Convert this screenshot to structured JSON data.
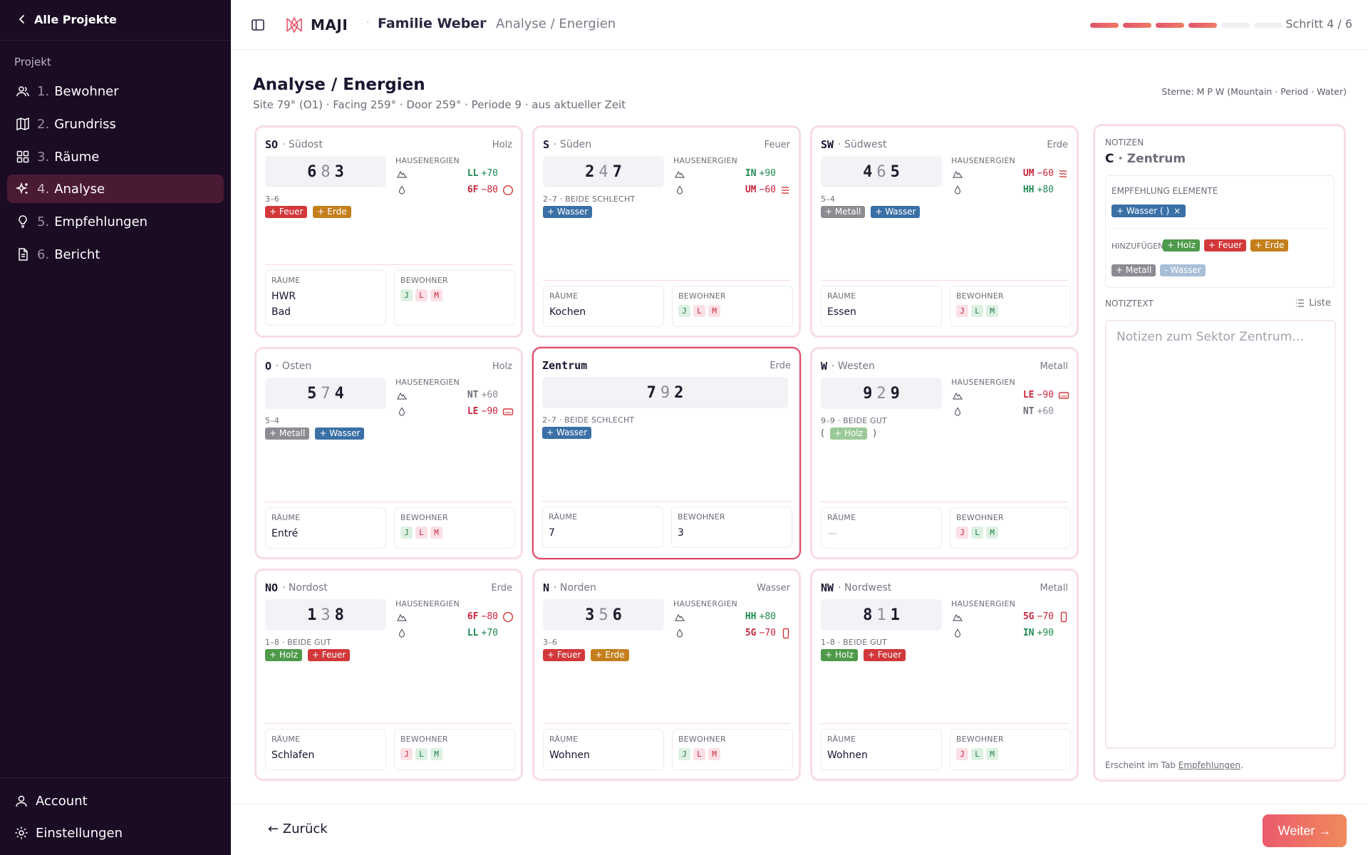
{
  "sidebar": {
    "back_label": "Alle Projekte",
    "section_label": "Projekt",
    "items": [
      {
        "num": "1.",
        "label": "Bewohner",
        "icon": "users-icon"
      },
      {
        "num": "2.",
        "label": "Grundriss",
        "icon": "map-icon"
      },
      {
        "num": "3.",
        "label": "Räume",
        "icon": "grid-icon"
      },
      {
        "num": "4.",
        "label": "Analyse",
        "icon": "sparkles-icon",
        "active": true
      },
      {
        "num": "5.",
        "label": "Empfehlungen",
        "icon": "lightbulb-icon"
      },
      {
        "num": "6.",
        "label": "Bericht",
        "icon": "document-icon"
      }
    ],
    "account_label": "Account",
    "settings_label": "Einstellungen"
  },
  "topbar": {
    "brand": "MAJI",
    "client": "Familie Weber",
    "page": "Analyse / Energien",
    "step": "Schritt 4 / 6",
    "progress_done": 4,
    "progress_total": 6
  },
  "header": {
    "title": "Analyse / Energien",
    "subtitle": "Site 79° (O1) · Facing 259° · Door 259° · Periode 9 · aus aktueller Zeit",
    "stars_legend": "Sterne: M P W (Mountain · Period · Water)"
  },
  "labels": {
    "hausenergien": "HAUSENERGIEN",
    "raeume": "RÄUME",
    "bewohner": "BEWOHNER"
  },
  "cards": [
    {
      "code": "SO",
      "name": "· Südost",
      "element": "Holz",
      "stars": [
        "6",
        "8",
        "3"
      ],
      "meta": "3–6",
      "tags": [
        {
          "label": "+ Feuer",
          "cls": "t-feuer"
        },
        {
          "label": "+ Erde",
          "cls": "t-erde"
        }
      ],
      "energies": [
        {
          "code": "LL",
          "val": "+70",
          "cls": "good",
          "sym": ""
        },
        {
          "code": "6F",
          "val": "−80",
          "cls": "bad",
          "sym": "circle"
        }
      ],
      "rooms": [
        "HWR",
        "Bad"
      ],
      "residents": [
        {
          "l": "J",
          "c": "r-g"
        },
        {
          "l": "L",
          "c": "r-r"
        },
        {
          "l": "M",
          "c": "r-r"
        }
      ]
    },
    {
      "code": "S",
      "name": "· Süden",
      "element": "Feuer",
      "stars": [
        "2",
        "4",
        "7"
      ],
      "meta": "2–7 · BEIDE SCHLECHT",
      "tags": [
        {
          "label": "+ Wasser",
          "cls": "t-wasser"
        }
      ],
      "energies": [
        {
          "code": "IN",
          "val": "+90",
          "cls": "good",
          "sym": ""
        },
        {
          "code": "UM",
          "val": "−60",
          "cls": "bad",
          "sym": "waves"
        }
      ],
      "rooms": [
        "Kochen"
      ],
      "residents": [
        {
          "l": "J",
          "c": "r-g"
        },
        {
          "l": "L",
          "c": "r-r"
        },
        {
          "l": "M",
          "c": "r-r"
        }
      ]
    },
    {
      "code": "SW",
      "name": "· Südwest",
      "element": "Erde",
      "stars": [
        "4",
        "6",
        "5"
      ],
      "meta": "5–4",
      "tags": [
        {
          "label": "+ Metall",
          "cls": "t-metall"
        },
        {
          "label": "+ Wasser",
          "cls": "t-wasser"
        }
      ],
      "energies": [
        {
          "code": "UM",
          "val": "−60",
          "cls": "bad",
          "sym": "waves"
        },
        {
          "code": "HH",
          "val": "+80",
          "cls": "good",
          "sym": ""
        }
      ],
      "rooms": [
        "Essen"
      ],
      "residents": [
        {
          "l": "J",
          "c": "r-r"
        },
        {
          "l": "L",
          "c": "r-g"
        },
        {
          "l": "M",
          "c": "r-g"
        }
      ]
    },
    {
      "code": "O",
      "name": "· Osten",
      "element": "Holz",
      "stars": [
        "5",
        "7",
        "4"
      ],
      "meta": "5–4",
      "tags": [
        {
          "label": "+ Metall",
          "cls": "t-metall"
        },
        {
          "label": "+ Wasser",
          "cls": "t-wasser"
        }
      ],
      "energies": [
        {
          "code": "NT",
          "val": "+60",
          "cls": "soft",
          "sym": ""
        },
        {
          "code": "LE",
          "val": "−90",
          "cls": "bad",
          "sym": "rect"
        }
      ],
      "rooms": [
        "Entré"
      ],
      "residents": [
        {
          "l": "J",
          "c": "r-g"
        },
        {
          "l": "L",
          "c": "r-r"
        },
        {
          "l": "M",
          "c": "r-r"
        }
      ]
    },
    {
      "code": "Zentrum",
      "name": "",
      "element": "Erde",
      "selected": true,
      "stars": [
        "7",
        "9",
        "2"
      ],
      "meta": "2–7 · BEIDE SCHLECHT",
      "tags": [
        {
          "label": "+ Wasser",
          "cls": "t-wasser"
        }
      ],
      "energies": [],
      "rooms": [
        "7"
      ],
      "residents_text": "3",
      "residents": []
    },
    {
      "code": "W",
      "name": "· Westen",
      "element": "Metall",
      "stars": [
        "9",
        "2",
        "9"
      ],
      "meta": "9–9 · BEIDE GUT",
      "tags": [
        {
          "label": "+ Holz",
          "cls": "t-holz-light",
          "paren": true
        }
      ],
      "energies": [
        {
          "code": "LE",
          "val": "−90",
          "cls": "bad",
          "sym": "rect"
        },
        {
          "code": "NT",
          "val": "+60",
          "cls": "soft",
          "sym": ""
        }
      ],
      "rooms": [
        "—"
      ],
      "rooms_muted": true,
      "residents": [
        {
          "l": "J",
          "c": "r-r"
        },
        {
          "l": "L",
          "c": "r-g"
        },
        {
          "l": "M",
          "c": "r-g"
        }
      ]
    },
    {
      "code": "NO",
      "name": "· Nordost",
      "element": "Erde",
      "stars": [
        "1",
        "3",
        "8"
      ],
      "meta": "1–8 · BEIDE GUT",
      "tags": [
        {
          "label": "+ Holz",
          "cls": "t-holz"
        },
        {
          "label": "+ Feuer",
          "cls": "t-feuer"
        }
      ],
      "energies": [
        {
          "code": "6F",
          "val": "−80",
          "cls": "bad",
          "sym": "circle"
        },
        {
          "code": "LL",
          "val": "+70",
          "cls": "good",
          "sym": ""
        }
      ],
      "rooms": [
        "Schlafen"
      ],
      "residents": [
        {
          "l": "J",
          "c": "r-r"
        },
        {
          "l": "L",
          "c": "r-g"
        },
        {
          "l": "M",
          "c": "r-g"
        }
      ]
    },
    {
      "code": "N",
      "name": "· Norden",
      "element": "Wasser",
      "stars": [
        "3",
        "5",
        "6"
      ],
      "meta": "3–6",
      "tags": [
        {
          "label": "+ Feuer",
          "cls": "t-feuer"
        },
        {
          "label": "+ Erde",
          "cls": "t-erde"
        }
      ],
      "energies": [
        {
          "code": "HH",
          "val": "+80",
          "cls": "good",
          "sym": ""
        },
        {
          "code": "5G",
          "val": "−70",
          "cls": "bad",
          "sym": "phone"
        }
      ],
      "rooms": [
        "Wohnen"
      ],
      "residents": [
        {
          "l": "J",
          "c": "r-g"
        },
        {
          "l": "L",
          "c": "r-r"
        },
        {
          "l": "M",
          "c": "r-r"
        }
      ]
    },
    {
      "code": "NW",
      "name": "· Nordwest",
      "element": "Metall",
      "stars": [
        "8",
        "1",
        "1"
      ],
      "meta": "1–8 · BEIDE GUT",
      "tags": [
        {
          "label": "+ Holz",
          "cls": "t-holz"
        },
        {
          "label": "+ Feuer",
          "cls": "t-feuer"
        }
      ],
      "energies": [
        {
          "code": "5G",
          "val": "−70",
          "cls": "bad",
          "sym": "phone"
        },
        {
          "code": "IN",
          "val": "+90",
          "cls": "good",
          "sym": ""
        }
      ],
      "rooms": [
        "Wohnen"
      ],
      "residents": [
        {
          "l": "J",
          "c": "r-r"
        },
        {
          "l": "L",
          "c": "r-g"
        },
        {
          "l": "M",
          "c": "r-g"
        }
      ]
    }
  ],
  "notes": {
    "caption": "NOTIZEN",
    "title_code": "C",
    "title_name": "· Zentrum",
    "emp_label": "EMPFEHLUNG ELEMENTE",
    "emp_chip": "+ Wasser ( )",
    "emp_chip_x": "×",
    "add_label": "HINZUFÜGEN:",
    "add_tags": [
      {
        "label": "+ Holz",
        "cls": "t-holz"
      },
      {
        "label": "+ Feuer",
        "cls": "t-feuer"
      },
      {
        "label": "+ Erde",
        "cls": "t-erde"
      },
      {
        "label": "+ Metall",
        "cls": "t-metall"
      },
      {
        "label": "- Wasser",
        "cls": "t-wasser-light"
      }
    ],
    "text_label": "NOTIZTEXT",
    "list_label": "Liste",
    "placeholder": "Notizen zum Sektor Zentrum…",
    "foot_prefix": "Erscheint im Tab ",
    "foot_link": "Empfehlungen",
    "foot_suffix": "."
  },
  "footer": {
    "back_label": "← Zurück",
    "next_label": "Weiter →"
  }
}
